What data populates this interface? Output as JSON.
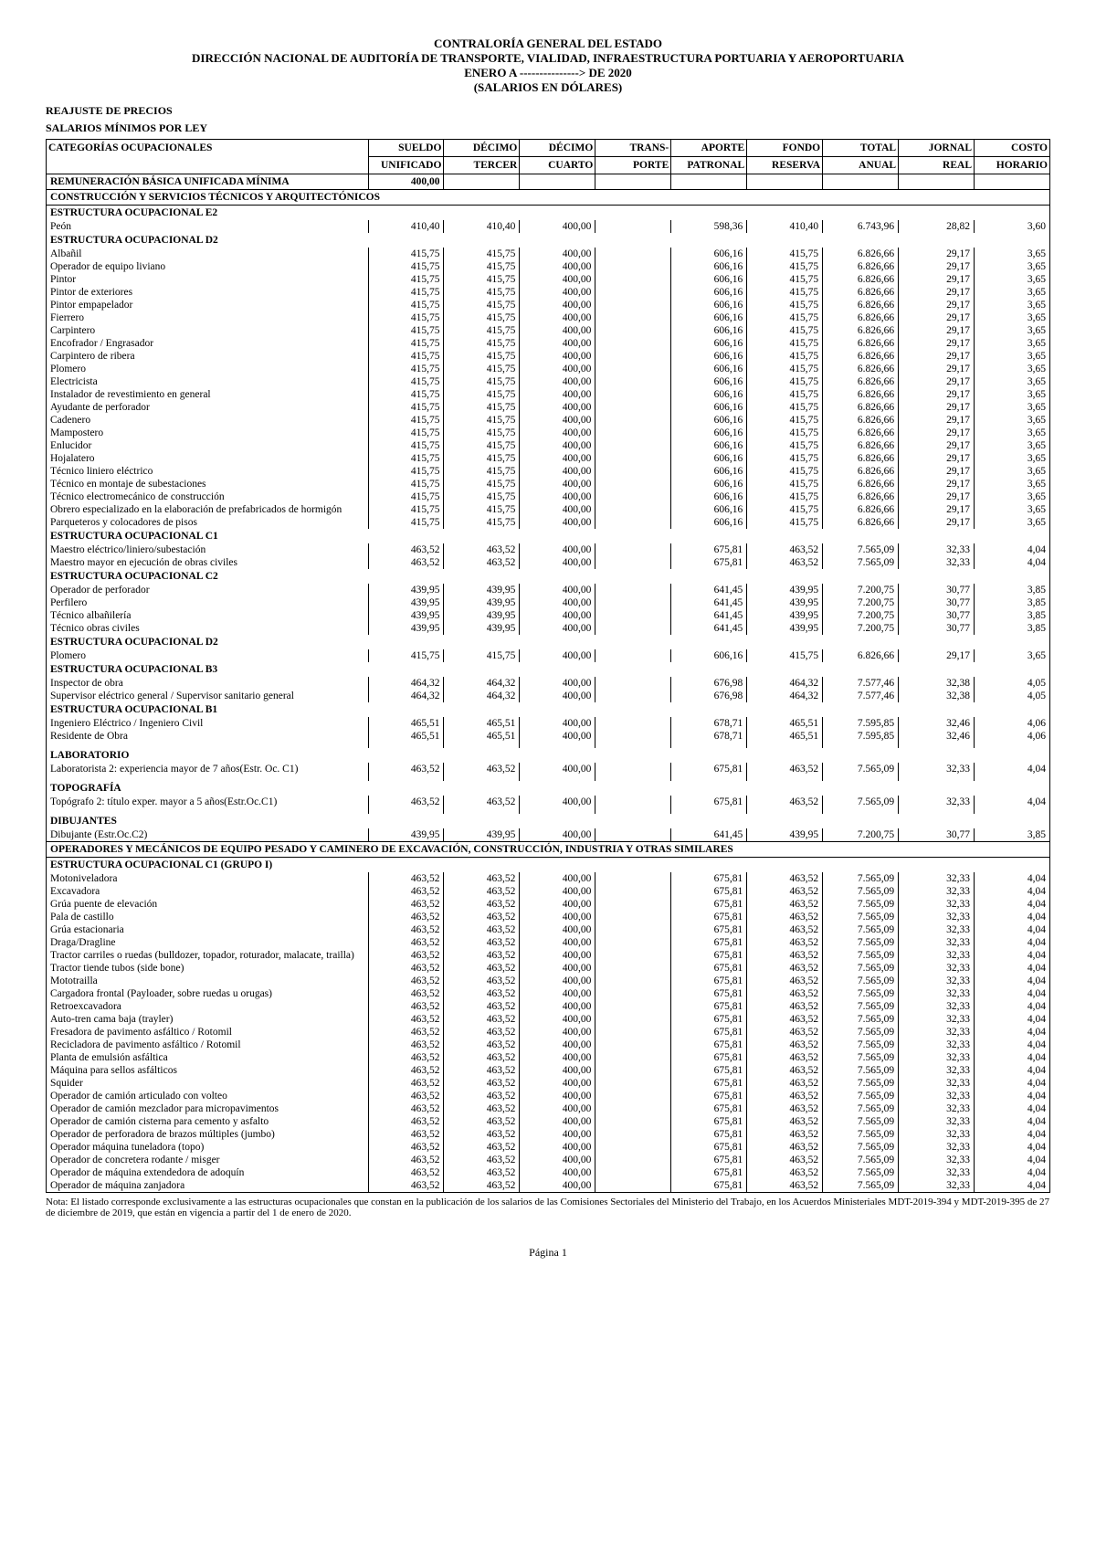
{
  "header": {
    "line1": "CONTRALORÍA GENERAL DEL ESTADO",
    "line2": "DIRECCIÓN NACIONAL DE AUDITORÍA DE TRANSPORTE, VIALIDAD, INFRAESTRUCTURA PORTUARIA Y AEROPORTUARIA",
    "line3": "ENERO A ---------------> DE 2020",
    "line4": "(SALARIOS EN DÓLARES)"
  },
  "subheader1": "REAJUSTE DE PRECIOS",
  "subheader2": "SALARIOS MÍNIMOS POR LEY",
  "columns": {
    "cat": "CATEGORÍAS OCUPACIONALES",
    "c1a": "SUELDO",
    "c1b": "UNIFICADO",
    "c2a": "DÉCIMO",
    "c2b": "TERCER",
    "c3a": "DÉCIMO",
    "c3b": "CUARTO",
    "c4a": "TRANS-",
    "c4b": "PORTE",
    "c5a": "APORTE",
    "c5b": "PATRONAL",
    "c6a": "FONDO",
    "c6b": "RESERVA",
    "c7a": "TOTAL",
    "c7b": "ANUAL",
    "c8a": "JORNAL",
    "c8b": "REAL",
    "c9a": "COSTO",
    "c9b": "HORARIO"
  },
  "basic_row": {
    "label": "REMUNERACIÓN BÁSICA UNIFICADA MÍNIMA",
    "v1": "400,00"
  },
  "section1": "CONSTRUCCIÓN Y SERVICIOS TÉCNICOS Y ARQUITECTÓNICOS",
  "sec_e2": "ESTRUCTURA OCUPACIONAL E2",
  "row_peon": {
    "label": "Peón",
    "v": [
      "410,40",
      "410,40",
      "400,00",
      "",
      "598,36",
      "410,40",
      "6.743,96",
      "28,82",
      "3,60"
    ]
  },
  "sec_d2": "ESTRUCTURA OCUPACIONAL D2",
  "d2_labels": [
    "Albañil",
    "Operador de equipo liviano",
    "Pintor",
    "Pintor de exteriores",
    "Pintor empapelador",
    "Fierrero",
    "Carpintero",
    "Encofrador / Engrasador",
    "Carpintero de ribera",
    "Plomero",
    "Electricista",
    "Instalador de revestimiento en general",
    "Ayudante de perforador",
    "Cadenero",
    "Mampostero",
    "Enlucidor",
    "Hojalatero",
    "Técnico liniero eléctrico",
    "Técnico en montaje de subestaciones",
    "Técnico electromecánico de construcción",
    "Obrero especializado en la elaboración de prefabricados de hormigón",
    "Parqueteros y colocadores de pisos"
  ],
  "d2_v": [
    "415,75",
    "415,75",
    "400,00",
    "",
    "606,16",
    "415,75",
    "6.826,66",
    "29,17",
    "3,65"
  ],
  "sec_c1": "ESTRUCTURA OCUPACIONAL C1",
  "c1_labels": [
    "Maestro eléctrico/liniero/subestación",
    "Maestro mayor en ejecución de obras civiles"
  ],
  "c1_v": [
    "463,52",
    "463,52",
    "400,00",
    "",
    "675,81",
    "463,52",
    "7.565,09",
    "32,33",
    "4,04"
  ],
  "sec_c2": "ESTRUCTURA OCUPACIONAL C2",
  "c2_labels": [
    "Operador de perforador",
    "Perfilero",
    "Técnico albañilería"
  ],
  "c2_v": [
    "439,95",
    "439,95",
    "400,00",
    "",
    "641,45",
    "439,95",
    "7.200,75",
    "30,77",
    "3,85"
  ],
  "c2_label_civil": "Técnico obras civiles",
  "sec_d2b": "ESTRUCTURA OCUPACIONAL D2",
  "d2b_label": "Plomero",
  "sec_b3": "ESTRUCTURA OCUPACIONAL B3",
  "b3_labels": [
    "Inspector de obra",
    "Supervisor eléctrico general / Supervisor sanitario general"
  ],
  "b3_v": [
    "464,32",
    "464,32",
    "400,00",
    "",
    "676,98",
    "464,32",
    "7.577,46",
    "32,38",
    "4,05"
  ],
  "sec_b1": "ESTRUCTURA OCUPACIONAL B1",
  "b1_labels": [
    "Ingeniero Eléctrico / Ingeniero Civil",
    "Residente de Obra"
  ],
  "b1_v": [
    "465,51",
    "465,51",
    "400,00",
    "",
    "678,71",
    "465,51",
    "7.595,85",
    "32,46",
    "4,06"
  ],
  "sec_lab": "LABORATORIO",
  "lab_label": "Laboratorista 2: experiencia mayor de 7 años(Estr. Oc. C1)",
  "sec_topo": "TOPOGRAFÍA",
  "topo_label": "Topógrafo 2: título exper. mayor a 5 años(Estr.Oc.C1)",
  "sec_dib": "DIBUJANTES",
  "dib_label": "Dibujante (Estr.Oc.C2)",
  "section2": "OPERADORES Y MECÁNICOS DE EQUIPO PESADO Y CAMINERO DE EXCAVACIÓN, CONSTRUCCIÓN, INDUSTRIA Y OTRAS SIMILARES",
  "sec_c1g1": "ESTRUCTURA OCUPACIONAL C1 (GRUPO I)",
  "g1_labels": [
    "Motoniveladora",
    "Excavadora",
    "Grúa puente de elevación",
    "Pala de castillo",
    "Grúa estacionaria",
    "Draga/Dragline",
    "Tractor carriles o ruedas (bulldozer, topador, roturador, malacate, trailla)",
    "Tractor tiende tubos (side bone)",
    "Mototrailla",
    "Cargadora frontal (Payloader, sobre ruedas u orugas)",
    "Retroexcavadora",
    "Auto-tren cama baja (trayler)",
    "Fresadora de pavimento asfáltico / Rotomil",
    "Recicladora de pavimento asfáltico / Rotomil",
    "Planta de emulsión asfáltica",
    "Máquina para sellos asfálticos",
    "Squider",
    "Operador de camión articulado con volteo",
    "Operador de camión mezclador para micropavimentos",
    "Operador de camión cisterna para cemento y asfalto",
    "Operador de perforadora de brazos múltiples (jumbo)",
    "Operador máquina tuneladora (topo)",
    "Operador de concretera rodante / misger",
    "Operador de máquina extendedora de adoquín",
    "Operador de máquina zanjadora"
  ],
  "note": "Nota: El listado corresponde exclusivamente a las estructuras ocupacionales que constan en la publicación de los salarios de las Comisiones Sectoriales del Ministerio del Trabajo, en los Acuerdos Ministeriales MDT-2019-394 y MDT-2019-395 de 27 de diciembre de 2019, que están en vigencia a partir del 1 de enero de 2020.",
  "page": "Página 1"
}
